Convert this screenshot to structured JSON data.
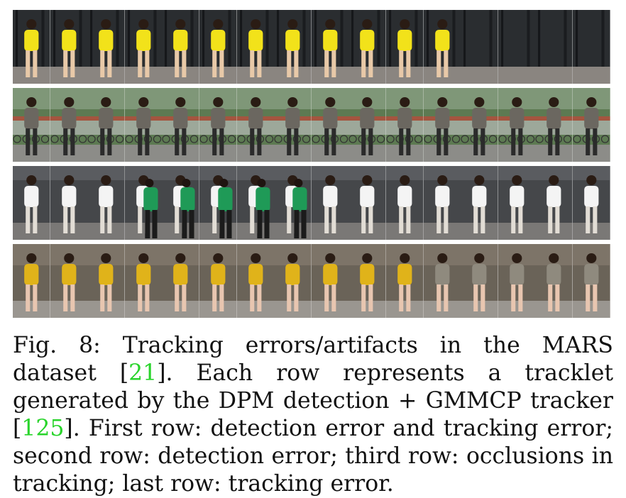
{
  "figure": {
    "rows": [
      {
        "id": "row-1",
        "frames": 16,
        "scene": "dark-doorway",
        "bg": "#2a2d30",
        "floor": "#8a8580",
        "person": "#f2e21a",
        "legs": "#e8c9a8",
        "vanish_from": 12
      },
      {
        "id": "row-2",
        "frames": 16,
        "scene": "campus-bikes",
        "bg": "#5d7a52",
        "floor": "#8c8c88",
        "person": "#6b6760",
        "legs": "#2b2b2b",
        "vanish_from": 99
      },
      {
        "id": "row-3",
        "frames": 16,
        "scene": "street-walk",
        "bg": "#45474a",
        "floor": "#7a7876",
        "person": "#f4f4f4",
        "legs": "#e2ddd5",
        "occluder": "#1f9a57",
        "occlude_frames": [
          3,
          4,
          5,
          6,
          7
        ]
      },
      {
        "id": "row-4",
        "frames": 16,
        "scene": "crowd-walk",
        "bg": "#6a6358",
        "floor": "#9a9690",
        "person": "#e0b31a",
        "legs": "#e8c6b0",
        "switch_from": 11,
        "switch_color": "#8f8a7e"
      }
    ]
  },
  "caption": {
    "label": "Fig. 8:",
    "part1": " Tracking errors/artifacts in the MARS dataset [",
    "cite1": "21",
    "part2": "]. Each row represents a tracklet generated by the DPM detection + GMMCP tracker [",
    "cite2": "125",
    "part3": "]. First row: detection error and tracking error; second row: detection error; third row: occlusions in tracking; last row: tracking error."
  },
  "colors": {
    "cite": "#29d42b",
    "text": "#111111"
  }
}
